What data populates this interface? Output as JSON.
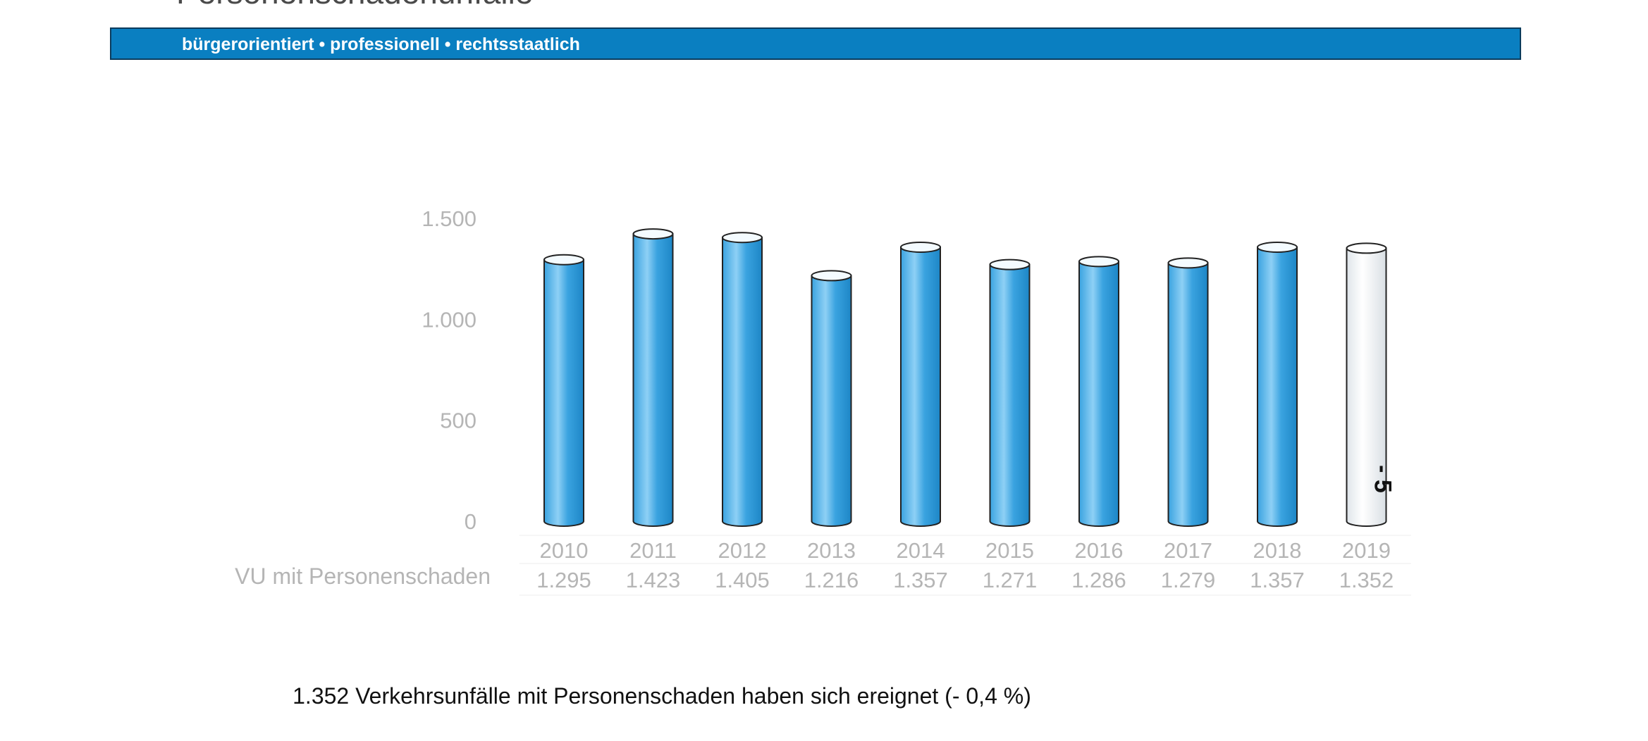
{
  "header": {
    "title": "Personenschadenunfälle",
    "banner_text": "bürgerorientiert • professionell • rechtsstaatlich"
  },
  "colors": {
    "banner": "#0a7fc1",
    "bar_fill": "#3aa3e0",
    "bar_highlight": "#8ed0f5",
    "bar_current": "#eef1f3",
    "axis_text": "#b5b5b5",
    "outline": "#222222"
  },
  "chart_data": {
    "type": "bar",
    "style": "3d-cylinder",
    "categories": [
      "2010",
      "2011",
      "2012",
      "2013",
      "2014",
      "2015",
      "2016",
      "2017",
      "2018",
      "2019"
    ],
    "series": [
      {
        "name": "VU mit Personenschaden",
        "values": [
          1295,
          1423,
          1405,
          1216,
          1357,
          1271,
          1286,
          1279,
          1357,
          1352
        ],
        "value_labels": [
          "1.295",
          "1.423",
          "1.405",
          "1.216",
          "1.357",
          "1.271",
          "1.286",
          "1.279",
          "1.357",
          "1.352"
        ]
      }
    ],
    "highlighted_category": "2019",
    "annotations": [
      {
        "category": "2019",
        "text": "- 5",
        "orientation": "vertical"
      }
    ],
    "yticks": [
      0,
      500,
      1000,
      1500
    ],
    "ytick_labels": [
      "0",
      "500",
      "1.000",
      "1.500"
    ],
    "ylim": [
      0,
      1500
    ],
    "data_table": true,
    "grid": false,
    "legend": "none"
  },
  "caption": "1.352 Verkehrsunfälle mit Personenschaden haben sich ereignet (- 0,4 %)"
}
